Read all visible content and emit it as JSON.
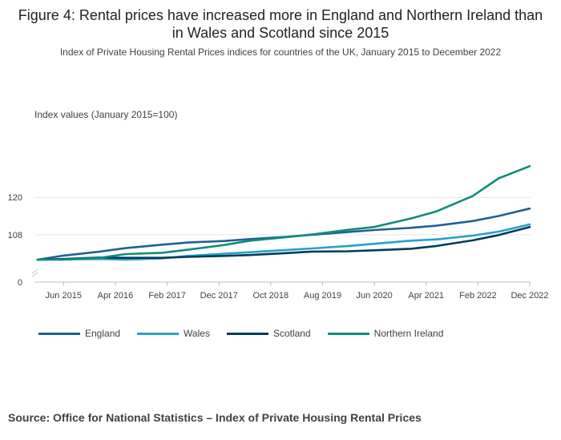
{
  "title": "Figure 4: Rental prices have increased more in England and Northern Ireland than in Wales and Scotland since 2015",
  "subtitle": "Index of Private Housing Rental Prices indices for countries of the UK, January 2015 to December 2022",
  "source": "Source: Office for National Statistics – Index of Private Housing Rental Prices",
  "colors": {
    "England": "#206095",
    "Wales": "#27a0cc",
    "Scotland": "#003c57",
    "Northern Ireland": "#118c7b",
    "grid": "#e5e5e5",
    "axis": "#bebebe"
  },
  "chart_data": {
    "type": "line",
    "ylabel": "Index values (January 2015=100)",
    "yticks": [
      0,
      108,
      120
    ],
    "ylim": [
      0,
      133
    ],
    "y_axis_break": true,
    "x_start": "2015-01",
    "x_end": "2022-12",
    "xticks": [
      {
        "label": "Jun 2015",
        "date": "2015-06"
      },
      {
        "label": "Apr 2016",
        "date": "2016-04"
      },
      {
        "label": "Feb 2017",
        "date": "2017-02"
      },
      {
        "label": "Dec 2017",
        "date": "2017-12"
      },
      {
        "label": "Oct 2018",
        "date": "2018-10"
      },
      {
        "label": "Aug 2019",
        "date": "2019-08"
      },
      {
        "label": "Jun 2020",
        "date": "2020-06"
      },
      {
        "label": "Apr 2021",
        "date": "2021-04"
      },
      {
        "label": "Feb 2022",
        "date": "2022-02"
      },
      {
        "label": "Dec 2022",
        "date": "2022-12"
      }
    ],
    "legend_position": "bottom",
    "series": [
      {
        "name": "England",
        "values": [
          {
            "date": "2015-01",
            "y": 100.0
          },
          {
            "date": "2015-06",
            "y": 101.3
          },
          {
            "date": "2016-01",
            "y": 102.6
          },
          {
            "date": "2016-06",
            "y": 103.7
          },
          {
            "date": "2017-01",
            "y": 104.8
          },
          {
            "date": "2017-06",
            "y": 105.5
          },
          {
            "date": "2018-01",
            "y": 106.0
          },
          {
            "date": "2018-06",
            "y": 106.6
          },
          {
            "date": "2019-01",
            "y": 107.3
          },
          {
            "date": "2019-06",
            "y": 108.0
          },
          {
            "date": "2020-01",
            "y": 108.9
          },
          {
            "date": "2020-06",
            "y": 109.5
          },
          {
            "date": "2021-01",
            "y": 110.2
          },
          {
            "date": "2021-06",
            "y": 110.9
          },
          {
            "date": "2022-01",
            "y": 112.4
          },
          {
            "date": "2022-06",
            "y": 114.0
          },
          {
            "date": "2022-12",
            "y": 116.4
          }
        ]
      },
      {
        "name": "Wales",
        "values": [
          {
            "date": "2015-01",
            "y": 100.0
          },
          {
            "date": "2015-06",
            "y": 100.1
          },
          {
            "date": "2016-01",
            "y": 100.2
          },
          {
            "date": "2016-06",
            "y": 100.0
          },
          {
            "date": "2017-01",
            "y": 100.4
          },
          {
            "date": "2017-06",
            "y": 101.2
          },
          {
            "date": "2018-01",
            "y": 101.9
          },
          {
            "date": "2018-06",
            "y": 102.4
          },
          {
            "date": "2019-01",
            "y": 103.1
          },
          {
            "date": "2019-06",
            "y": 103.6
          },
          {
            "date": "2020-01",
            "y": 104.4
          },
          {
            "date": "2020-06",
            "y": 105.1
          },
          {
            "date": "2021-01",
            "y": 106.1
          },
          {
            "date": "2021-06",
            "y": 106.5
          },
          {
            "date": "2022-01",
            "y": 107.7
          },
          {
            "date": "2022-06",
            "y": 109.0
          },
          {
            "date": "2022-12",
            "y": 111.3
          }
        ]
      },
      {
        "name": "Scotland",
        "values": [
          {
            "date": "2015-01",
            "y": 100.0
          },
          {
            "date": "2015-06",
            "y": 100.2
          },
          {
            "date": "2016-01",
            "y": 100.7
          },
          {
            "date": "2016-06",
            "y": 100.6
          },
          {
            "date": "2017-01",
            "y": 100.6
          },
          {
            "date": "2017-06",
            "y": 100.9
          },
          {
            "date": "2018-01",
            "y": 101.2
          },
          {
            "date": "2018-06",
            "y": 101.5
          },
          {
            "date": "2019-01",
            "y": 102.1
          },
          {
            "date": "2019-06",
            "y": 102.6
          },
          {
            "date": "2020-01",
            "y": 102.7
          },
          {
            "date": "2020-06",
            "y": 103.0
          },
          {
            "date": "2021-01",
            "y": 103.5
          },
          {
            "date": "2021-06",
            "y": 104.4
          },
          {
            "date": "2022-01",
            "y": 106.2
          },
          {
            "date": "2022-06",
            "y": 107.9
          },
          {
            "date": "2022-12",
            "y": 110.5
          }
        ]
      },
      {
        "name": "Northern Ireland",
        "values": [
          {
            "date": "2015-01",
            "y": 100.0
          },
          {
            "date": "2015-06",
            "y": 100.0
          },
          {
            "date": "2016-01",
            "y": 100.6
          },
          {
            "date": "2016-06",
            "y": 101.8
          },
          {
            "date": "2017-01",
            "y": 102.2
          },
          {
            "date": "2017-06",
            "y": 103.2
          },
          {
            "date": "2018-01",
            "y": 104.7
          },
          {
            "date": "2018-06",
            "y": 106.1
          },
          {
            "date": "2019-01",
            "y": 107.2
          },
          {
            "date": "2019-06",
            "y": 108.1
          },
          {
            "date": "2020-01",
            "y": 109.6
          },
          {
            "date": "2020-06",
            "y": 110.5
          },
          {
            "date": "2021-01",
            "y": 113.2
          },
          {
            "date": "2021-06",
            "y": 115.5
          },
          {
            "date": "2022-01",
            "y": 120.4
          },
          {
            "date": "2022-06",
            "y": 126.1
          },
          {
            "date": "2022-12",
            "y": 130.0
          }
        ]
      }
    ]
  }
}
